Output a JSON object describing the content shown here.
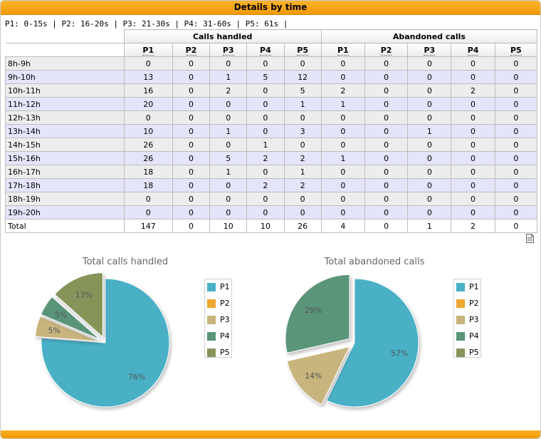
{
  "header": {
    "title": "Details by time"
  },
  "period_legend": "P1: 0-15s | P2: 16-20s | P3: 21-30s | P4: 31-60s | P5: 61s |",
  "table": {
    "group_headers": [
      "Calls handled",
      "Abandoned calls"
    ],
    "sub_headers": [
      "P1",
      "P2",
      "P3",
      "P4",
      "P5",
      "P1",
      "P2",
      "P3",
      "P4",
      "P5"
    ],
    "rows": [
      {
        "label": "8h-9h",
        "values": [
          "0",
          "0",
          "0",
          "0",
          "0",
          "0",
          "0",
          "0",
          "0",
          "0"
        ]
      },
      {
        "label": "9h-10h",
        "values": [
          "13",
          "0",
          "1",
          "5",
          "12",
          "0",
          "0",
          "0",
          "0",
          "0"
        ]
      },
      {
        "label": "10h-11h",
        "values": [
          "16",
          "0",
          "2",
          "0",
          "5",
          "2",
          "0",
          "0",
          "2",
          "0"
        ]
      },
      {
        "label": "11h-12h",
        "values": [
          "20",
          "0",
          "0",
          "0",
          "1",
          "1",
          "0",
          "0",
          "0",
          "0"
        ]
      },
      {
        "label": "12h-13h",
        "values": [
          "0",
          "0",
          "0",
          "0",
          "0",
          "0",
          "0",
          "0",
          "0",
          "0"
        ]
      },
      {
        "label": "13h-14h",
        "values": [
          "10",
          "0",
          "1",
          "0",
          "3",
          "0",
          "0",
          "1",
          "0",
          "0"
        ]
      },
      {
        "label": "14h-15h",
        "values": [
          "26",
          "0",
          "0",
          "1",
          "0",
          "0",
          "0",
          "0",
          "0",
          "0"
        ]
      },
      {
        "label": "15h-16h",
        "values": [
          "26",
          "0",
          "5",
          "2",
          "2",
          "1",
          "0",
          "0",
          "0",
          "0"
        ]
      },
      {
        "label": "16h-17h",
        "values": [
          "18",
          "0",
          "1",
          "0",
          "1",
          "0",
          "0",
          "0",
          "0",
          "0"
        ]
      },
      {
        "label": "17h-18h",
        "values": [
          "18",
          "0",
          "0",
          "2",
          "2",
          "0",
          "0",
          "0",
          "0",
          "0"
        ]
      },
      {
        "label": "18h-19h",
        "values": [
          "0",
          "0",
          "0",
          "0",
          "0",
          "0",
          "0",
          "0",
          "0",
          "0"
        ]
      },
      {
        "label": "19h-20h",
        "values": [
          "0",
          "0",
          "0",
          "0",
          "0",
          "0",
          "0",
          "0",
          "0",
          "0"
        ]
      },
      {
        "label": "Total",
        "values": [
          "147",
          "0",
          "10",
          "10",
          "26",
          "4",
          "0",
          "1",
          "2",
          "0"
        ]
      }
    ]
  },
  "export_icon": "document-export-icon",
  "colors": {
    "P1": "#4ab0c6",
    "P2": "#f0a830",
    "P3": "#c8b57d",
    "P4": "#5a9479",
    "P5": "#86945a",
    "header": "#f19a06"
  },
  "chart_data": [
    {
      "type": "pie",
      "title": "Total calls handled",
      "categories": [
        "P1",
        "P2",
        "P3",
        "P4",
        "P5"
      ],
      "values": [
        147,
        0,
        10,
        10,
        26
      ],
      "labels": [
        "76%",
        "",
        "5%",
        "5%",
        "13%"
      ],
      "legend": "right"
    },
    {
      "type": "pie",
      "title": "Total abandoned calls",
      "categories": [
        "P1",
        "P2",
        "P3",
        "P4",
        "P5"
      ],
      "values": [
        4,
        0,
        1,
        2,
        0
      ],
      "labels": [
        "57%",
        "",
        "14%",
        "29%",
        ""
      ],
      "legend": "right"
    }
  ]
}
